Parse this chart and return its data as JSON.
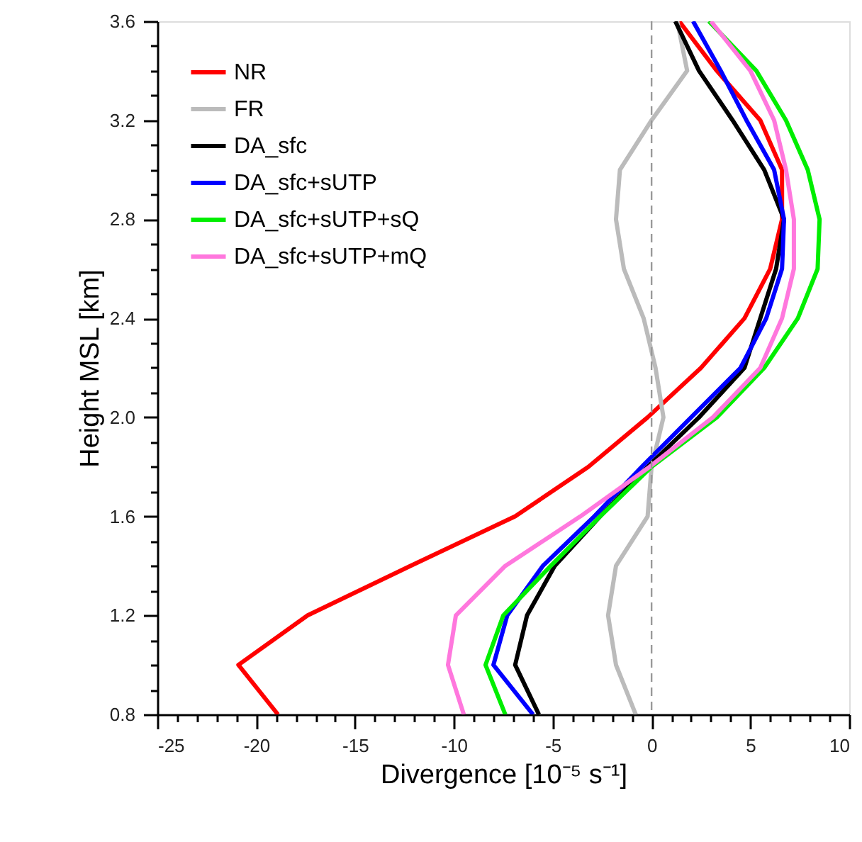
{
  "chart_data": {
    "type": "line",
    "xlabel": "Divergence [10⁻⁵ s⁻¹]",
    "ylabel": "Height MSL [km]",
    "xlim": [
      -25,
      10
    ],
    "ylim": [
      0.8,
      3.6
    ],
    "xticks": [
      -25,
      {
        "value": -24,
        "label": null
      },
      {
        "value": -23,
        "label": null
      },
      {
        "value": -22,
        "label": null
      },
      {
        "value": -21,
        "label": null
      },
      -20,
      {
        "value": -19,
        "label": null
      },
      {
        "value": -18,
        "label": null
      },
      {
        "value": -17,
        "label": null
      },
      {
        "value": -16,
        "label": null
      },
      -15,
      {
        "value": -14,
        "label": null
      },
      {
        "value": -13,
        "label": null
      },
      {
        "value": -12,
        "label": null
      },
      {
        "value": -11,
        "label": null
      },
      -10,
      {
        "value": -9,
        "label": null
      },
      {
        "value": -8,
        "label": null
      },
      {
        "value": -7,
        "label": null
      },
      {
        "value": -6,
        "label": null
      },
      -5,
      {
        "value": -4,
        "label": null
      },
      {
        "value": -3,
        "label": null
      },
      {
        "value": -2,
        "label": null
      },
      {
        "value": -1,
        "label": null
      },
      0,
      {
        "value": 1,
        "label": null
      },
      {
        "value": 2,
        "label": null
      },
      {
        "value": 3,
        "label": null
      },
      {
        "value": 4,
        "label": null
      },
      5,
      {
        "value": 6,
        "label": null
      },
      {
        "value": 7,
        "label": null
      },
      {
        "value": 8,
        "label": null
      },
      {
        "value": 9,
        "label": null
      },
      10
    ],
    "yticks": [
      0.8,
      {
        "value": 0.9,
        "label": null
      },
      {
        "value": 1.0,
        "label": null
      },
      {
        "value": 1.1,
        "label": null
      },
      1.2,
      {
        "value": 1.3,
        "label": null
      },
      {
        "value": 1.4,
        "label": null
      },
      {
        "value": 1.5,
        "label": null
      },
      1.6,
      {
        "value": 1.7,
        "label": null
      },
      {
        "value": 1.8,
        "label": null
      },
      {
        "value": 1.9,
        "label": null
      },
      {
        "value": 2.0,
        "label": "2.0"
      },
      {
        "value": 2.1,
        "label": null
      },
      {
        "value": 2.2,
        "label": null
      },
      {
        "value": 2.3,
        "label": null
      },
      2.4,
      {
        "value": 2.5,
        "label": null
      },
      {
        "value": 2.6,
        "label": null
      },
      {
        "value": 2.7,
        "label": null
      },
      2.8,
      {
        "value": 2.9,
        "label": null
      },
      {
        "value": 3.0,
        "label": null
      },
      {
        "value": 3.1,
        "label": null
      },
      3.2,
      {
        "value": 3.3,
        "label": null
      },
      {
        "value": 3.4,
        "label": null
      },
      {
        "value": 3.5,
        "label": null
      },
      3.6
    ],
    "grid": false,
    "legend": "top left",
    "line_style": "solid",
    "marker": "none",
    "ref_lines": [
      {
        "axis": "x",
        "value": 0,
        "color": "#999999",
        "line_style": "dashed"
      }
    ],
    "series": [
      {
        "name": "NR",
        "color": "#ff0000",
        "x": [
          -18.9,
          -20.9,
          -17.4,
          -12.2,
          -6.9,
          -3.2,
          -0.2,
          2.5,
          4.7,
          6.0,
          6.6,
          6.6,
          5.5,
          3.3,
          1.4
        ],
        "values": [
          0.8,
          1.0,
          1.2,
          1.4,
          1.6,
          1.8,
          2.0,
          2.2,
          2.4,
          2.6,
          2.8,
          3.0,
          3.2,
          3.4,
          3.6
        ]
      },
      {
        "name": "FR",
        "color": "#bbbbbb",
        "x": [
          -0.8,
          -1.8,
          -2.2,
          -1.8,
          -0.2,
          0.0,
          0.6,
          0.2,
          -0.4,
          -1.4,
          -1.8,
          -1.6,
          0.0,
          1.8,
          1.3
        ],
        "values": [
          0.8,
          1.0,
          1.2,
          1.4,
          1.6,
          1.8,
          2.0,
          2.2,
          2.4,
          2.6,
          2.8,
          3.0,
          3.2,
          3.4,
          3.6
        ]
      },
      {
        "name": "DA_sfc",
        "color": "#000000",
        "x": [
          -5.7,
          -6.9,
          -6.3,
          -4.9,
          -2.6,
          -0.2,
          2.4,
          4.7,
          5.5,
          6.3,
          6.7,
          5.7,
          4.1,
          2.4,
          1.2
        ],
        "values": [
          0.8,
          1.0,
          1.2,
          1.4,
          1.6,
          1.8,
          2.0,
          2.2,
          2.4,
          2.6,
          2.8,
          3.0,
          3.2,
          3.4,
          3.6
        ]
      },
      {
        "name": "DA_sfc+sUTP",
        "color": "#0000ff",
        "x": [
          -6.0,
          -8.0,
          -7.3,
          -5.5,
          -2.9,
          -0.5,
          2.0,
          4.5,
          5.8,
          6.6,
          6.7,
          6.2,
          4.8,
          3.5,
          2.1
        ],
        "values": [
          0.8,
          1.0,
          1.2,
          1.4,
          1.6,
          1.8,
          2.0,
          2.2,
          2.4,
          2.6,
          2.8,
          3.0,
          3.2,
          3.4,
          3.6
        ]
      },
      {
        "name": "DA_sfc+sUTP+sQ",
        "color": "#00ee00",
        "x": [
          -7.4,
          -8.4,
          -7.5,
          -5.1,
          -2.6,
          0.0,
          3.3,
          5.7,
          7.4,
          8.4,
          8.5,
          7.9,
          6.8,
          5.3,
          2.9
        ],
        "values": [
          0.8,
          1.0,
          1.2,
          1.4,
          1.6,
          1.8,
          2.0,
          2.2,
          2.4,
          2.6,
          2.8,
          3.0,
          3.2,
          3.4,
          3.6
        ]
      },
      {
        "name": "DA_sfc+sUTP+mQ",
        "color": "#ff77dd",
        "x": [
          -9.5,
          -10.3,
          -9.9,
          -7.4,
          -3.6,
          -0.1,
          3.1,
          5.5,
          6.6,
          7.2,
          7.2,
          6.8,
          6.2,
          5.0,
          3.0
        ],
        "values": [
          0.8,
          1.0,
          1.2,
          1.4,
          1.6,
          1.8,
          2.0,
          2.2,
          2.4,
          2.6,
          2.8,
          3.0,
          3.2,
          3.4,
          3.6
        ]
      }
    ]
  }
}
